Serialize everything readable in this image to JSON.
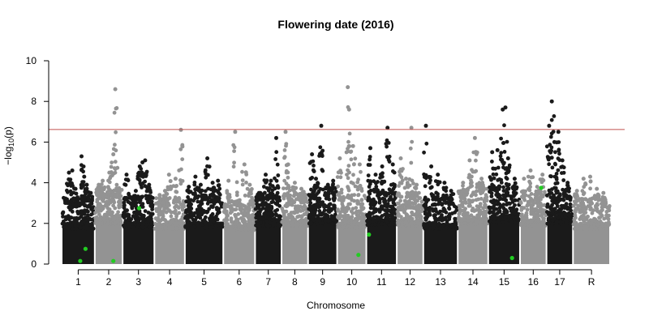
{
  "chart_data": {
    "type": "scatter",
    "title": "Flowering date (2016)",
    "xlabel": "Chromosome",
    "ylabel_prefix": "−log",
    "ylabel_sub": "10",
    "ylabel_suffix": "(p)",
    "ylim": [
      0,
      10
    ],
    "yticks": [
      0,
      2,
      4,
      6,
      8,
      10
    ],
    "threshold": 6.62,
    "colors": {
      "odd": "#1a1a1a",
      "even": "#939393",
      "threshold": "#c0504d",
      "highlight": "#22cc22"
    },
    "chromosomes": [
      {
        "label": "1",
        "span": [
          0.0,
          2.5
        ],
        "typical_max": 2.8,
        "peaks": [
          [
            0.55,
            4.5
          ],
          [
            0.8,
            4.6
          ],
          [
            1.05,
            3.7
          ],
          [
            1.2,
            3.0
          ],
          [
            1.5,
            5.3
          ],
          [
            1.7,
            4.3
          ],
          [
            1.9,
            3.9
          ],
          [
            2.2,
            3.5
          ]
        ]
      },
      {
        "label": "2",
        "span": [
          2.5,
          4.6
        ],
        "typical_max": 3.2,
        "peaks": [
          [
            2.8,
            3.9
          ],
          [
            3.1,
            4.1
          ],
          [
            3.6,
            4.5
          ],
          [
            3.9,
            5.4
          ],
          [
            4.05,
            8.6
          ],
          [
            4.3,
            3.7
          ]
        ]
      },
      {
        "label": "3",
        "span": [
          4.6,
          7.0
        ],
        "typical_max": 2.9,
        "peaks": [
          [
            4.9,
            4.4
          ],
          [
            5.6,
            3.6
          ],
          [
            5.9,
            4.8
          ],
          [
            6.1,
            5.0
          ],
          [
            6.3,
            5.1
          ],
          [
            6.6,
            3.9
          ]
        ]
      },
      {
        "label": "4",
        "span": [
          7.0,
          9.3
        ],
        "typical_max": 2.8,
        "peaks": [
          [
            7.4,
            3.4
          ],
          [
            7.8,
            3.6
          ],
          [
            8.1,
            4.4
          ],
          [
            8.6,
            4.2
          ],
          [
            9.0,
            6.6
          ]
        ]
      },
      {
        "label": "5",
        "span": [
          9.3,
          12.2
        ],
        "typical_max": 2.9,
        "peaks": [
          [
            9.6,
            3.8
          ],
          [
            10.1,
            4.3
          ],
          [
            10.5,
            3.9
          ],
          [
            11.0,
            5.2
          ],
          [
            11.4,
            4.0
          ],
          [
            11.8,
            4.1
          ]
        ]
      },
      {
        "label": "6",
        "span": [
          12.2,
          14.6
        ],
        "typical_max": 2.7,
        "peaks": [
          [
            12.6,
            4.1
          ],
          [
            13.1,
            6.5
          ],
          [
            13.8,
            4.9
          ],
          [
            14.2,
            3.9
          ]
        ]
      },
      {
        "label": "7",
        "span": [
          14.6,
          16.6
        ],
        "typical_max": 3.0,
        "peaks": [
          [
            14.9,
            3.5
          ],
          [
            15.4,
            4.4
          ],
          [
            15.8,
            4.1
          ],
          [
            16.2,
            6.2
          ]
        ]
      },
      {
        "label": "8",
        "span": [
          16.6,
          18.6
        ],
        "typical_max": 3.0,
        "peaks": [
          [
            16.9,
            6.5
          ],
          [
            17.1,
            4.9
          ],
          [
            17.6,
            4.0
          ],
          [
            18.1,
            3.7
          ]
        ]
      },
      {
        "label": "9",
        "span": [
          18.6,
          20.8
        ],
        "typical_max": 3.2,
        "peaks": [
          [
            18.9,
            5.4
          ],
          [
            19.2,
            4.2
          ],
          [
            19.6,
            6.8
          ],
          [
            20.1,
            3.9
          ],
          [
            20.5,
            4.1
          ]
        ]
      },
      {
        "label": "10",
        "span": [
          20.8,
          23.0
        ],
        "typical_max": 2.9,
        "peaks": [
          [
            21.0,
            5.2
          ],
          [
            21.6,
            8.7
          ],
          [
            21.7,
            7.6
          ],
          [
            22.0,
            5.8
          ],
          [
            22.5,
            4.9
          ]
        ]
      },
      {
        "label": "11",
        "span": [
          23.0,
          25.3
        ],
        "typical_max": 3.1,
        "peaks": [
          [
            23.3,
            5.7
          ],
          [
            23.7,
            4.4
          ],
          [
            24.2,
            4.8
          ],
          [
            24.6,
            6.7
          ],
          [
            25.0,
            4.9
          ]
        ]
      },
      {
        "label": "12",
        "span": [
          25.3,
          27.3
        ],
        "typical_max": 3.0,
        "peaks": [
          [
            25.6,
            5.2
          ],
          [
            26.0,
            4.2
          ],
          [
            26.4,
            6.7
          ],
          [
            26.8,
            3.9
          ]
        ]
      },
      {
        "label": "13",
        "span": [
          27.3,
          29.9
        ],
        "typical_max": 2.8,
        "peaks": [
          [
            27.5,
            6.8
          ],
          [
            27.9,
            4.8
          ],
          [
            28.4,
            4.4
          ],
          [
            28.9,
            4.0
          ],
          [
            29.4,
            3.6
          ]
        ]
      },
      {
        "label": "14",
        "span": [
          29.9,
          32.2
        ],
        "typical_max": 3.2,
        "peaks": [
          [
            30.3,
            4.0
          ],
          [
            30.8,
            5.1
          ],
          [
            31.2,
            6.2
          ],
          [
            31.7,
            4.2
          ]
        ]
      },
      {
        "label": "15",
        "span": [
          32.2,
          34.6
        ],
        "typical_max": 3.3,
        "peaks": [
          [
            32.5,
            5.5
          ],
          [
            32.9,
            5.6
          ],
          [
            33.3,
            7.6
          ],
          [
            33.5,
            7.7
          ],
          [
            33.7,
            5.2
          ],
          [
            34.2,
            4.2
          ]
        ]
      },
      {
        "label": "16",
        "span": [
          34.6,
          36.6
        ],
        "typical_max": 3.0,
        "peaks": [
          [
            34.9,
            4.2
          ],
          [
            35.4,
            4.6
          ],
          [
            35.9,
            3.8
          ],
          [
            36.3,
            4.4
          ]
        ]
      },
      {
        "label": "17",
        "span": [
          36.6,
          38.6
        ],
        "typical_max": 3.2,
        "peaks": [
          [
            36.8,
            6.8
          ],
          [
            37.0,
            8.0
          ],
          [
            37.2,
            6.0
          ],
          [
            37.5,
            6.5
          ],
          [
            37.8,
            5.1
          ],
          [
            38.2,
            4.0
          ]
        ]
      },
      {
        "label": "R",
        "span": [
          38.6,
          41.4
        ],
        "typical_max": 2.8,
        "peaks": [
          [
            38.9,
            3.6
          ],
          [
            39.4,
            4.2
          ],
          [
            39.9,
            4.3
          ],
          [
            40.4,
            3.7
          ],
          [
            40.9,
            3.5
          ]
        ]
      }
    ],
    "highlights": [
      {
        "x": 1.4,
        "y": 0.15
      },
      {
        "x": 1.8,
        "y": 0.75
      },
      {
        "x": 3.9,
        "y": 0.15
      },
      {
        "x": 5.85,
        "y": 2.75
      },
      {
        "x": 22.4,
        "y": 0.45
      },
      {
        "x": 23.2,
        "y": 1.45
      },
      {
        "x": 34.0,
        "y": 0.3
      },
      {
        "x": 36.2,
        "y": 3.75
      }
    ]
  }
}
